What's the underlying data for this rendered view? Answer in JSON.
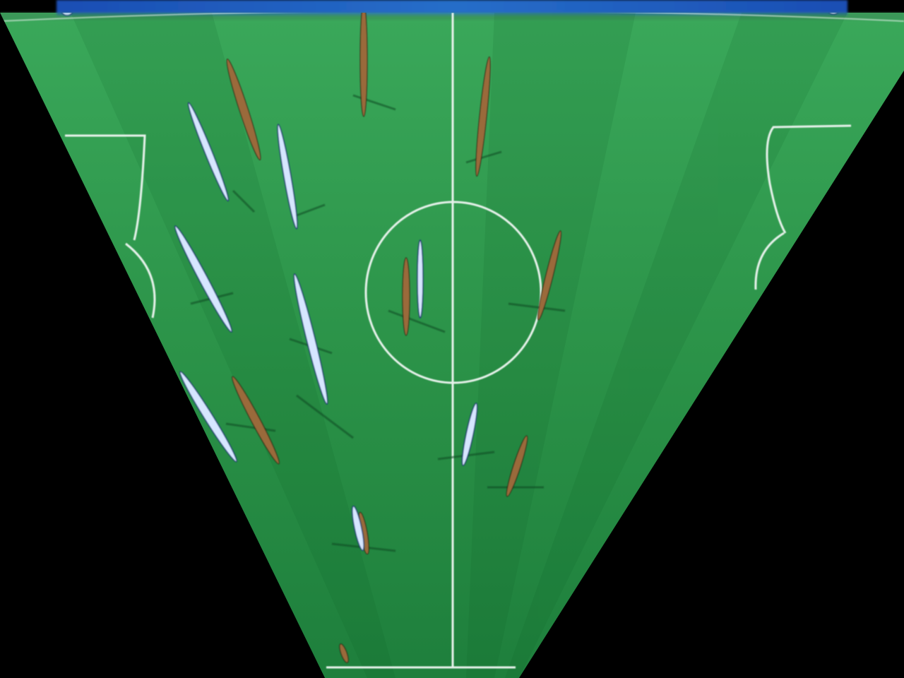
{
  "scene": {
    "kind": "overhead-warped-football-pitch",
    "pitch_color": "#2e9a4e",
    "pitch_color_dark": "#1f7a38",
    "line_color": "#e8f3ec",
    "background_color": "#000000",
    "stand_color": "#2b6fd6",
    "team_a_color": "#9a6a3a",
    "team_b_color": "#d6e6ff",
    "player_counts": {
      "team_a": 9,
      "team_b": 10
    }
  }
}
